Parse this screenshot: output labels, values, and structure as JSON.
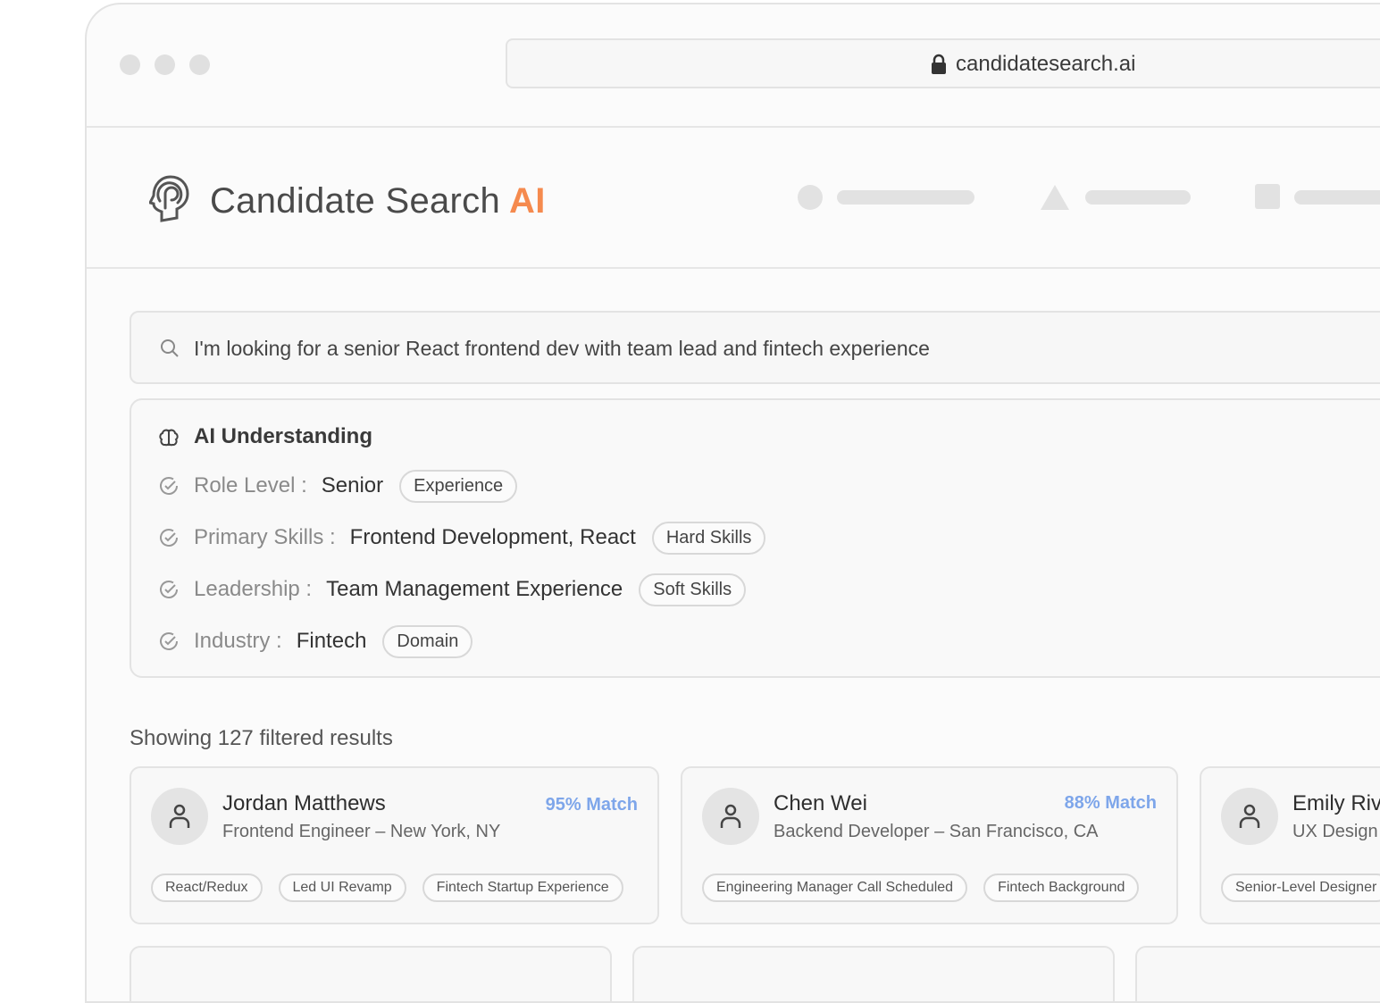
{
  "browser": {
    "url": "candidatesearch.ai",
    "lock_icon": "lock-icon"
  },
  "header": {
    "brand": "Candidate Search",
    "brand_accent": "AI",
    "accent_color": "#f58a4e"
  },
  "search": {
    "query": "I'm looking for a senior React frontend dev with team lead and fintech experience"
  },
  "ai_understanding": {
    "title": "AI Understanding",
    "rows": [
      {
        "label": "Role Level :",
        "value": "Senior",
        "tag": "Experience"
      },
      {
        "label": "Primary Skills :",
        "value": "Frontend Development, React",
        "tag": "Hard Skills"
      },
      {
        "label": "Leadership :",
        "value": "Team Management Experience",
        "tag": "Soft Skills"
      },
      {
        "label": "Industry :",
        "value": "Fintech",
        "tag": "Domain"
      }
    ]
  },
  "results": {
    "count_text": "Showing 127 filtered results",
    "match_color": "#7ea6ea",
    "cards": [
      {
        "name": "Jordan Matthews",
        "role": "Frontend Engineer – New York, NY",
        "match": "95% Match",
        "chips": [
          "React/Redux",
          "Led UI Revamp",
          "Fintech Startup Experience"
        ]
      },
      {
        "name": "Chen Wei",
        "role": "Backend Developer – San Francisco, CA",
        "match": "88% Match",
        "chips": [
          "Engineering Manager Call Scheduled",
          "Fintech Background"
        ]
      },
      {
        "name": "Emily Riv",
        "role": "UX Design",
        "chips": [
          "Senior-Level Designer"
        ]
      }
    ]
  }
}
